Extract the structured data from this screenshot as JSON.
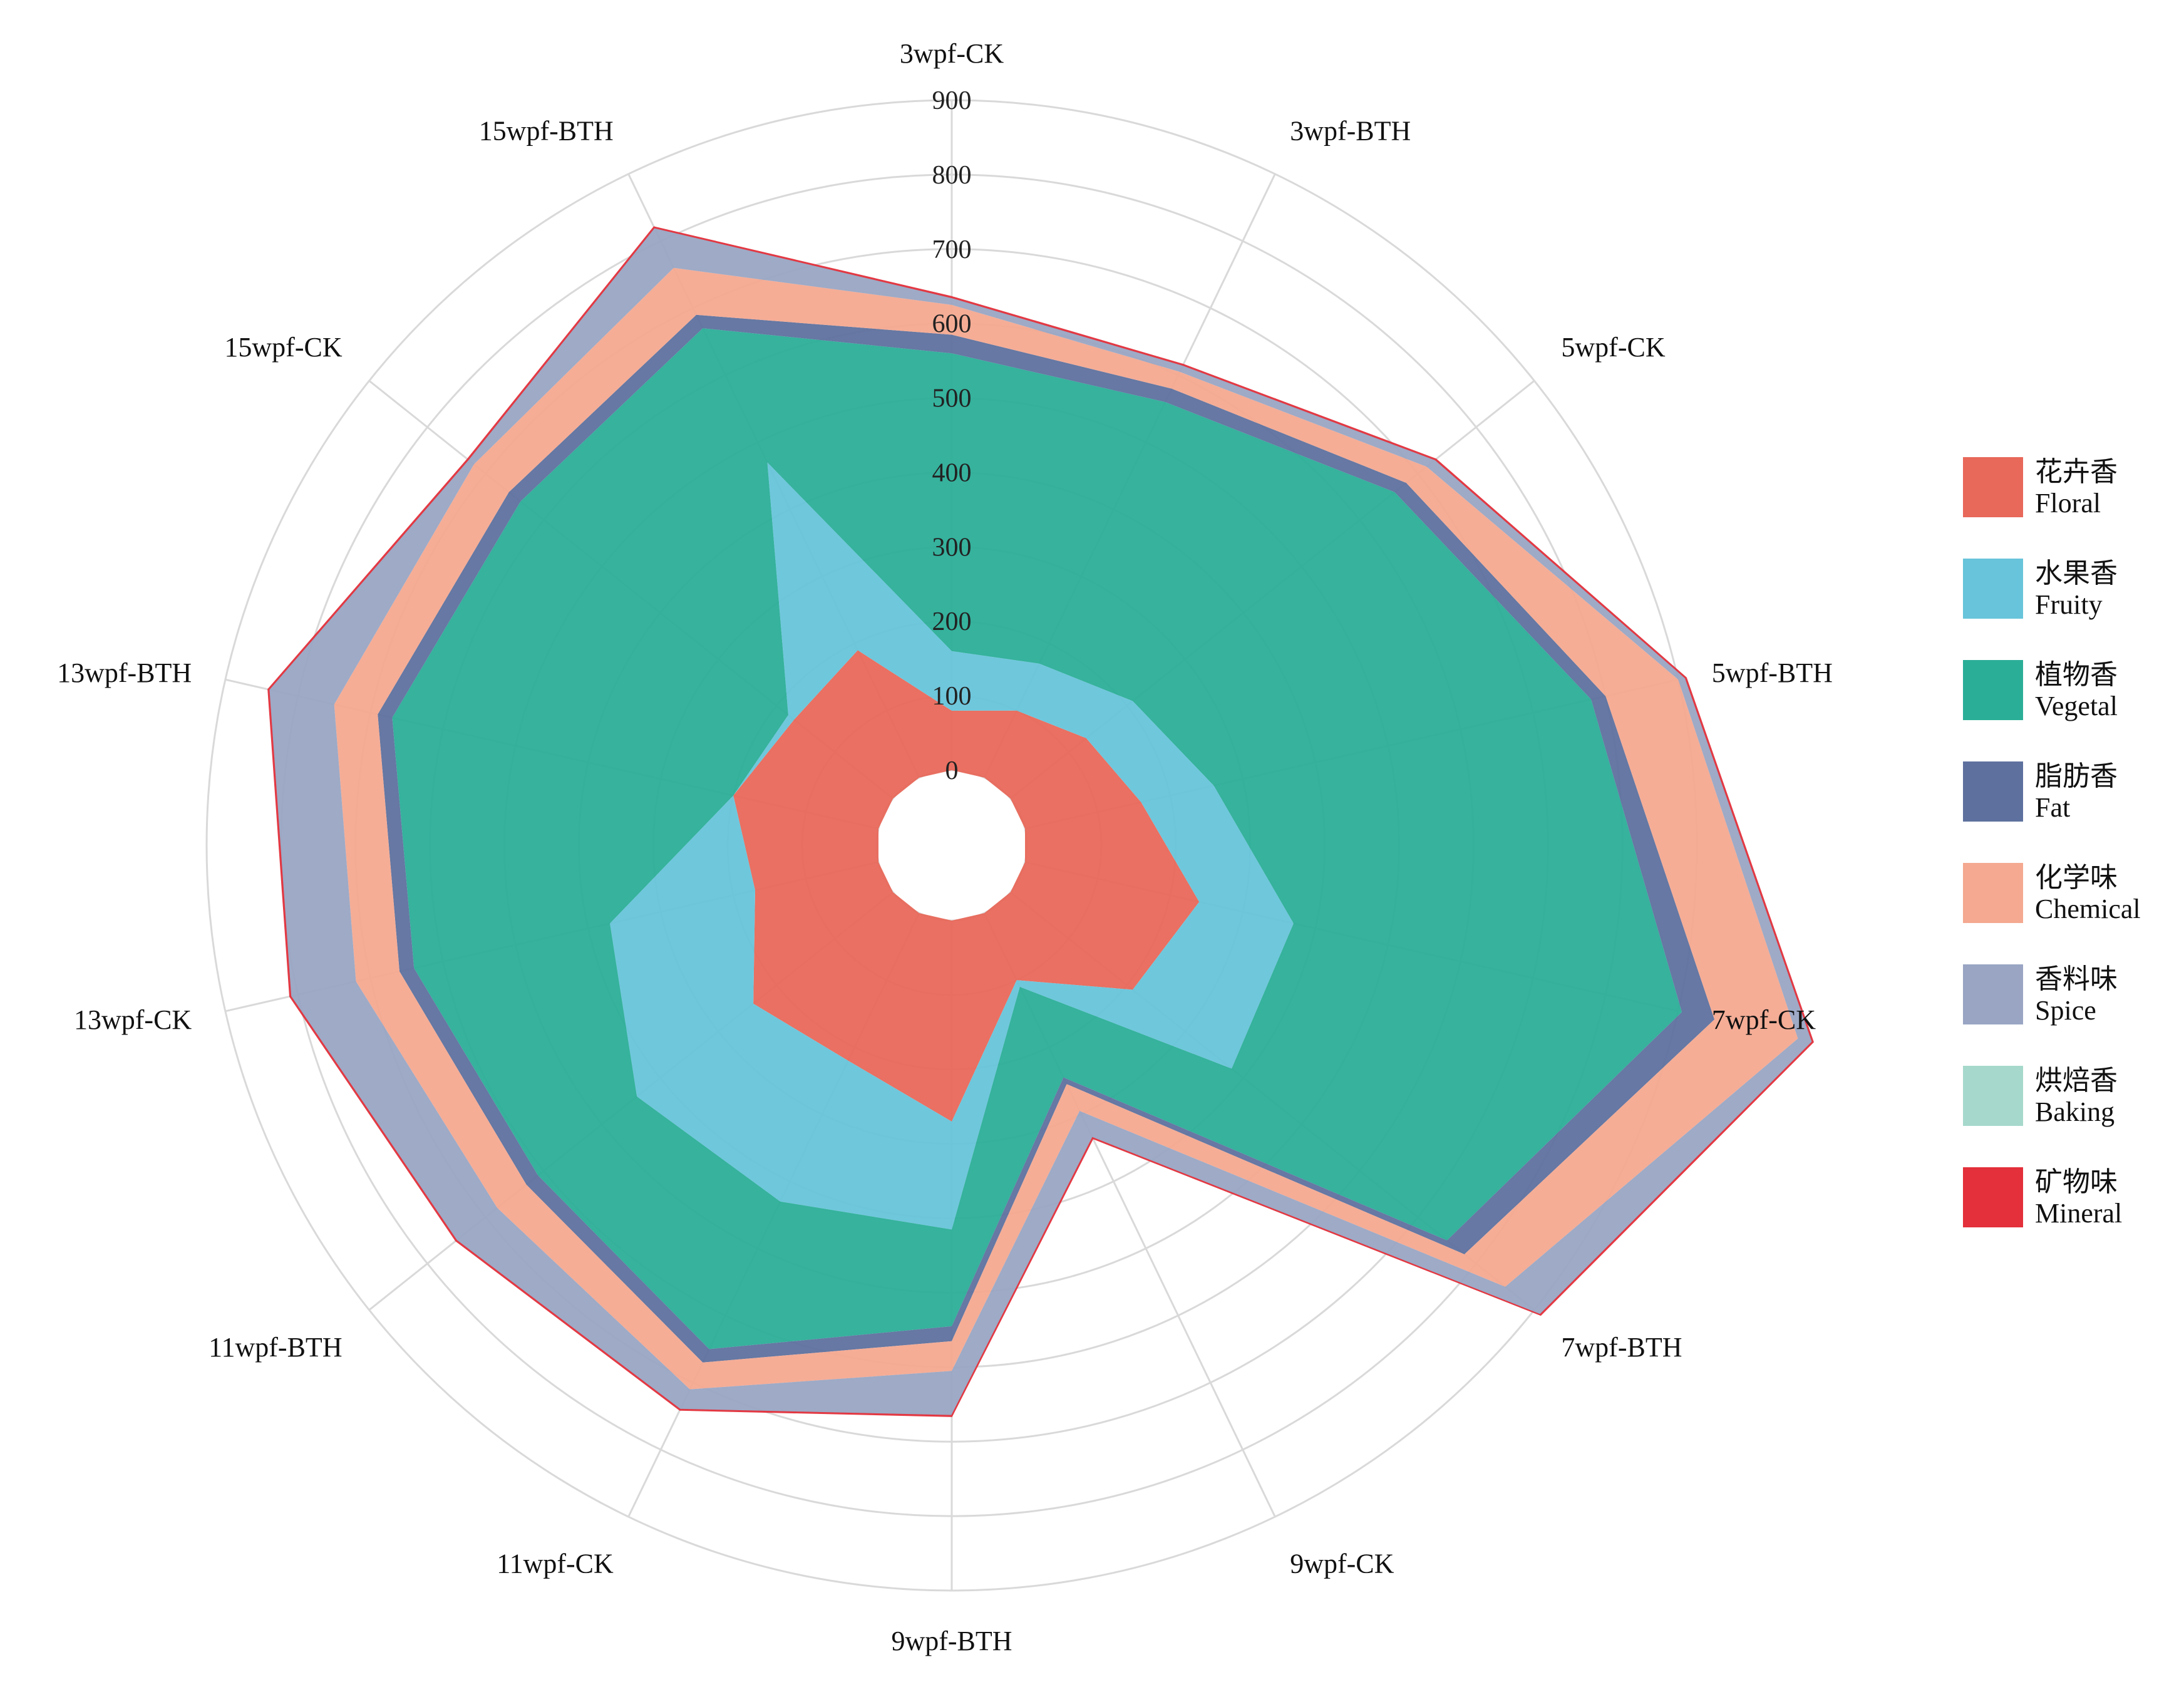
{
  "chart_data": {
    "type": "stacked-radar",
    "title": "",
    "axes": [
      "3wpf-CK",
      "3wpf-BTH",
      "5wpf-CK",
      "5wpf-BTH",
      "7wpf-CK",
      "7wpf-BTH",
      "9wpf-CK",
      "9wpf-BTH",
      "11wpf-CK",
      "11wpf-BTH",
      "13wpf-CK",
      "13wpf-BTH",
      "15wpf-CK",
      "15wpf-BTH"
    ],
    "radial_ticks": [
      "0",
      "100",
      "200",
      "300",
      "400",
      "500",
      "600",
      "700",
      "800",
      "900"
    ],
    "rmax": 900,
    "grid": true,
    "legend_position": "right",
    "series": [
      {
        "name": "花卉香",
        "name_en": "Floral",
        "color": "#E8685A",
        "values": [
          80,
          100,
          130,
          160,
          240,
          210,
          100,
          270,
          220,
          240,
          170,
          200,
          170,
          190
        ]
      },
      {
        "name": "水果香",
        "name_en": "Fruity",
        "color": "#67C4DA",
        "values": [
          80,
          70,
          80,
          100,
          130,
          170,
          10,
          145,
          210,
          200,
          200,
          0,
          10,
          280
        ]
      },
      {
        "name": "植物香",
        "name_en": "Vegetal",
        "color": "#2BAE98",
        "values": [
          400,
          390,
          450,
          520,
          535,
          370,
          135,
          130,
          220,
          170,
          270,
          470,
          460,
          200
        ]
      },
      {
        "name": "脂肪香",
        "name_en": "Fat",
        "color": "#5E719E",
        "values": [
          25,
          20,
          20,
          20,
          45,
          30,
          10,
          20,
          20,
          20,
          20,
          20,
          20,
          20
        ]
      },
      {
        "name": "化学味",
        "name_en": "Chemical",
        "color": "#F4A990",
        "values": [
          40,
          25,
          35,
          100,
          115,
          70,
          40,
          40,
          40,
          50,
          60,
          60,
          60,
          70
        ]
      },
      {
        "name": "香料味",
        "name_en": "Spice",
        "color": "#99A5C3",
        "values": [
          10,
          10,
          15,
          10,
          20,
          60,
          40,
          60,
          30,
          70,
          90,
          90,
          10,
          60
        ]
      },
      {
        "name": "烘焙香",
        "name_en": "Baking",
        "color": "#A6D9CB",
        "values": [
          0,
          0,
          0,
          0,
          0,
          0,
          0,
          0,
          0,
          0,
          0,
          0,
          0,
          0
        ]
      },
      {
        "name": "矿物味",
        "name_en": "Mineral",
        "color": "#E3303A",
        "values": [
          1,
          1,
          1,
          1,
          1,
          1,
          1,
          1,
          1,
          1,
          1,
          1,
          1,
          1
        ]
      }
    ]
  }
}
